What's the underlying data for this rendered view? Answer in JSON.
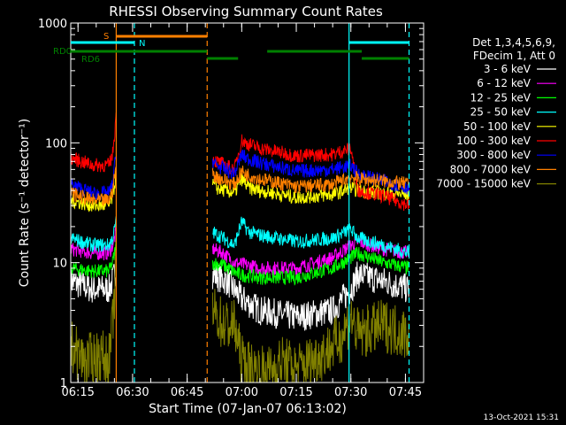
{
  "chart_data": {
    "type": "line",
    "title": "RHESSI Observing Summary Count Rates",
    "xlabel": "Start Time (07-Jan-07 06:13:02)",
    "ylabel": "Count Rate (s⁻¹ detector⁻¹)",
    "yscale": "log",
    "ylim": [
      1,
      1000
    ],
    "xlim_minutes": [
      0,
      97
    ],
    "x_ticks": [
      {
        "t": 2,
        "label": "06:15"
      },
      {
        "t": 17,
        "label": "06:30"
      },
      {
        "t": 32,
        "label": "06:45"
      },
      {
        "t": 47,
        "label": "07:00"
      },
      {
        "t": 62,
        "label": "07:15"
      },
      {
        "t": 77,
        "label": "07:30"
      },
      {
        "t": 92,
        "label": "07:45"
      }
    ],
    "y_ticks": [
      {
        "v": 1,
        "label": "1"
      },
      {
        "v": 10,
        "label": "10"
      },
      {
        "v": 100,
        "label": "100"
      },
      {
        "v": 1000,
        "label": "1000"
      }
    ],
    "legend_header": [
      "Det 1,3,4,5,6,9,",
      "FDecim 1, Att 0"
    ],
    "legend_position": "right",
    "series": [
      {
        "name": "3 - 6 keV",
        "color": "#ffffff",
        "segments": [
          {
            "x": [
              0,
              6,
              10.5,
              11.5,
              12.5
            ],
            "y": [
              7,
              6,
              6,
              7,
              9
            ]
          },
          {
            "x": [
              39,
              43,
              47,
              52,
              62,
              72,
              77,
              79,
              86,
              93
            ],
            "y": [
              8,
              7,
              5,
              4,
              3.5,
              4,
              6,
              8,
              7,
              6
            ]
          }
        ]
      },
      {
        "name": "6 - 12 keV",
        "color": "#ff00ff",
        "segments": [
          {
            "x": [
              0,
              6,
              10.5,
              11.5,
              12.5
            ],
            "y": [
              13,
              12,
              12,
              14,
              18
            ]
          },
          {
            "x": [
              39,
              42,
              45,
              52,
              62,
              72,
              77,
              79,
              86,
              93
            ],
            "y": [
              13,
              12,
              10,
              9,
              9,
              11,
              14,
              15,
              13,
              12
            ]
          }
        ]
      },
      {
        "name": "12 - 25 keV",
        "color": "#00ff00",
        "segments": [
          {
            "x": [
              0,
              6,
              10.5,
              11.5,
              12.5
            ],
            "y": [
              9,
              8.5,
              8.5,
              10,
              14
            ]
          },
          {
            "x": [
              39,
              42,
              46,
              52,
              62,
              72,
              77,
              79,
              86,
              93
            ],
            "y": [
              10,
              9.5,
              8,
              7.5,
              7.5,
              9,
              11,
              12,
              10,
              9
            ]
          }
        ]
      },
      {
        "name": "25 - 50 keV",
        "color": "#00ffff",
        "segments": [
          {
            "x": [
              0,
              6,
              10.5,
              11.5,
              12.5
            ],
            "y": [
              16,
              14,
              14,
              16,
              22
            ]
          },
          {
            "x": [
              39,
              42,
              45,
              47,
              49,
              52,
              62,
              72,
              77,
              79,
              86,
              93
            ],
            "y": [
              18,
              16,
              14,
              22,
              18,
              17,
              15,
              16,
              19,
              16,
              14,
              12
            ]
          }
        ]
      },
      {
        "name": "50 - 100 keV",
        "color": "#ffff00",
        "segments": [
          {
            "x": [
              0,
              6,
              10.5,
              11.5,
              12.5
            ],
            "y": [
              33,
              30,
              30,
              35,
              55
            ]
          },
          {
            "x": [
              39,
              40,
              45,
              47,
              49,
              52,
              62,
              72,
              77,
              79,
              86,
              93
            ],
            "y": [
              45,
              42,
              38,
              50,
              42,
              40,
              35,
              37,
              42,
              40,
              38,
              37
            ]
          }
        ]
      },
      {
        "name": "100 - 300 keV",
        "color": "#ff0000",
        "segments": [
          {
            "x": [
              0,
              6,
              10.5,
              11.5,
              12.5
            ],
            "y": [
              75,
              65,
              65,
              80,
              170
            ]
          },
          {
            "x": [
              39,
              40,
              45,
              47,
              48,
              52,
              62,
              72,
              77,
              79,
              86,
              93
            ],
            "y": [
              75,
              70,
              60,
              105,
              100,
              90,
              78,
              80,
              90,
              40,
              36,
              30
            ]
          }
        ]
      },
      {
        "name": "300 - 800 keV",
        "color": "#0000ff",
        "segments": [
          {
            "x": [
              0,
              6,
              10.5,
              11.5,
              12.5
            ],
            "y": [
              45,
              38,
              38,
              45,
              85
            ]
          },
          {
            "x": [
              39,
              40,
              45,
              47,
              48,
              52,
              62,
              72,
              77,
              79,
              86,
              93
            ],
            "y": [
              70,
              65,
              55,
              80,
              75,
              68,
              58,
              60,
              65,
              55,
              48,
              42
            ]
          }
        ]
      },
      {
        "name": "800 - 7000 keV",
        "color": "#ff8000",
        "segments": [
          {
            "x": [
              0,
              6,
              10.5,
              11.5,
              12.5
            ],
            "y": [
              38,
              33,
              33,
              40,
              65
            ]
          },
          {
            "x": [
              39,
              40,
              45,
              47,
              48,
              52,
              62,
              72,
              77,
              79,
              86,
              93
            ],
            "y": [
              55,
              52,
              45,
              58,
              55,
              50,
              43,
              45,
              52,
              50,
              48,
              45
            ]
          }
        ]
      },
      {
        "name": "7000 - 15000 keV",
        "color": "#808000",
        "segments": [
          {
            "x": [
              0,
              4,
              8,
              10.5,
              11.5,
              12.5
            ],
            "y": [
              2,
              1.5,
              1.7,
              1.5,
              3,
              10
            ]
          },
          {
            "x": [
              39,
              42,
              45,
              47,
              50,
              54,
              58,
              62,
              66,
              70,
              74,
              77,
              79,
              86,
              93
            ],
            "y": [
              4,
              3,
              3,
              1.5,
              1.3,
              1.2,
              1.5,
              1.3,
              1.5,
              1.8,
              2.3,
              3.5,
              2.5,
              3,
              2.5
            ]
          }
        ]
      }
    ],
    "flag_bars": [
      {
        "label": "S",
        "color": "#ff8000",
        "row": 1,
        "intervals": [
          [
            12.5,
            37.5
          ]
        ]
      },
      {
        "label": "N",
        "color": "#00ffff",
        "row": 2,
        "intervals": [
          [
            0,
            17.5
          ],
          [
            76.5,
            93
          ]
        ]
      },
      {
        "label": "RD0",
        "color": "#008000",
        "row": 3,
        "intervals": [
          [
            0,
            37.5
          ],
          [
            54,
            80
          ]
        ]
      },
      {
        "label": "RD6",
        "color": "#008000",
        "row": 4,
        "intervals": [
          [
            37.5,
            46
          ],
          [
            80,
            93
          ]
        ]
      }
    ],
    "vlines": [
      {
        "t": 12.5,
        "color": "#ff8000",
        "style": "solid"
      },
      {
        "t": 17.5,
        "color": "#00ffff",
        "style": "dashed"
      },
      {
        "t": 37.5,
        "color": "#ff8000",
        "style": "dashed"
      },
      {
        "t": 76.5,
        "color": "#00ffff",
        "style": "solid"
      },
      {
        "t": 93,
        "color": "#00ffff",
        "style": "dashed"
      }
    ],
    "timestamp": "13-Oct-2021 15:31"
  }
}
